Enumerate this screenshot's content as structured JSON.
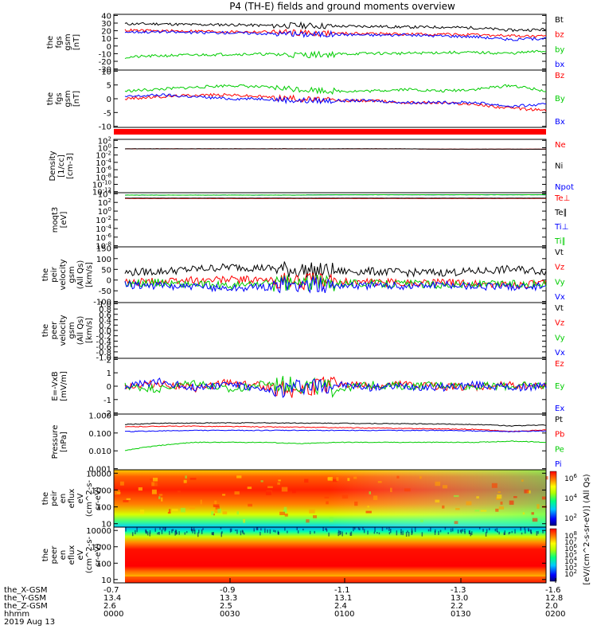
{
  "chart_data": {
    "type": "line",
    "title": "P4 (TH-E) fields and ground moments overview",
    "x_labels": {
      "rows": [
        "the_X-GSM",
        "the_Y-GSM",
        "the_Z-GSM",
        "hhmm",
        "2019 Aug 13"
      ],
      "columns": [
        [
          "-0.7",
          "13.4",
          "2.6",
          "0000"
        ],
        [
          "-0.9",
          "13.3",
          "2.5",
          "0030"
        ],
        [
          "-1.1",
          "13.1",
          "2.4",
          "0100"
        ],
        [
          "-1.3",
          "13.0",
          "2.2",
          "0130"
        ],
        [
          "-1.6",
          "12.8",
          "2.0",
          "0200"
        ]
      ]
    },
    "panels": [
      {
        "ylabel": [
          "the",
          "fgs",
          "gsm",
          "[nT]"
        ],
        "ylim": [
          -30,
          40
        ],
        "yticks": [
          "40",
          "30",
          "20",
          "10",
          "0",
          "-10",
          "-20",
          "-30"
        ],
        "series": [
          {
            "name": "Bt",
            "color": "#000000",
            "values": [
              28,
              28,
              27,
              27,
              26,
              26,
              25,
              25,
              24,
              24,
              23,
              20,
              21
            ]
          },
          {
            "name": "bz",
            "color": "#ff0000",
            "values": [
              20,
              19,
              19,
              18,
              18,
              17,
              16,
              16,
              15,
              15,
              14,
              13,
              12
            ]
          },
          {
            "name": "by",
            "color": "#00cc00",
            "values": [
              -14,
              -12,
              -11,
              -10,
              -10,
              -11,
              -10,
              -9,
              -9,
              -8,
              -8,
              -9,
              -6
            ]
          },
          {
            "name": "bx",
            "color": "#0000ff",
            "values": [
              18,
              18,
              17,
              17,
              16,
              15,
              15,
              14,
              14,
              13,
              12,
              8,
              10
            ]
          }
        ]
      },
      {
        "ylabel": [
          "the",
          "fgs",
          "gsm",
          "[nT]"
        ],
        "ylim": [
          -15,
          15
        ],
        "yticks": [
          "10",
          "5",
          "0",
          "-5",
          "-10"
        ],
        "series": [
          {
            "name": "Bz",
            "color": "#ff0000",
            "values": [
              0,
              1,
              2,
              2,
              1,
              0,
              -1,
              -1,
              -2,
              -2,
              -3,
              -5,
              -6
            ]
          },
          {
            "name": "By",
            "color": "#00cc00",
            "values": [
              4,
              5,
              6,
              7,
              6,
              5,
              4,
              4,
              5,
              4,
              5,
              7,
              4
            ]
          },
          {
            "name": "Bx",
            "color": "#0000ff",
            "values": [
              1,
              2,
              1,
              0,
              0,
              -1,
              -1,
              -1,
              -2,
              -2,
              -2,
              -4,
              -3
            ]
          }
        ]
      },
      {
        "ylabel": [
          "Density",
          "[1/cc]",
          "[cm-3]"
        ],
        "yticks": [
          "10^2",
          "10^0",
          "10^-2",
          "10^-4",
          "10^-6",
          "10^-8",
          "10^-10",
          "10^-12"
        ],
        "series": [
          {
            "name": "Ne",
            "color": "#ff0000",
            "values": [
              0.5,
              0.5,
              0.5,
              0.5,
              0.5,
              0.5,
              0.5,
              0.5,
              0.5,
              0.4,
              0.4,
              0.4,
              0.4
            ]
          },
          {
            "name": "Ni",
            "color": "#000000",
            "values": [
              0.5,
              0.5,
              0.5,
              0.5,
              0.5,
              0.5,
              0.5,
              0.5,
              0.5,
              0.4,
              0.4,
              0.4,
              0.4
            ]
          },
          {
            "name": "Npot",
            "color": "#0000ff",
            "values": []
          }
        ]
      },
      {
        "ylabel": [
          "moqt3",
          "[eV]"
        ],
        "yticks": [
          "10^4",
          "10^2",
          "10^0",
          "10^-2",
          "10^-4",
          "10^-6",
          "10^-8"
        ],
        "series": [
          {
            "name": "Te⊥",
            "color": "#ff0000",
            "values": [
              800,
              800,
              800,
              800,
              800,
              800,
              800,
              800,
              800,
              800,
              800,
              800,
              800
            ]
          },
          {
            "name": "Te∥",
            "color": "#000000",
            "values": [
              1000,
              1000,
              1000,
              1000,
              1000,
              1000,
              1000,
              1000,
              1000,
              1000,
              1000,
              1000,
              1000
            ]
          },
          {
            "name": "Ti⊥",
            "color": "#0000ff",
            "values": [
              5000,
              5000,
              5000,
              5000,
              5000,
              5000,
              6000,
              6000,
              6000,
              6000,
              6000,
              6000,
              6000
            ]
          },
          {
            "name": "Ti∥",
            "color": "#00cc00",
            "values": [
              5000,
              5000,
              5000,
              5000,
              5000,
              5000,
              6000,
              6000,
              6000,
              6000,
              6000,
              6000,
              6000
            ]
          }
        ]
      },
      {
        "ylabel": [
          "the",
          "peir",
          "velocity",
          "gsm",
          "(All Qs)",
          "[km/s]"
        ],
        "ylim": [
          -100,
          150
        ],
        "yticks": [
          "150",
          "100",
          "50",
          "0",
          "-50",
          "-100"
        ],
        "series": [
          {
            "name": "Vt",
            "color": "#000000",
            "values": [
              35,
              40,
              50,
              60,
              55,
              45,
              40,
              40,
              35,
              35,
              40,
              50,
              40
            ]
          },
          {
            "name": "Vz",
            "color": "#ff0000",
            "values": [
              -10,
              -5,
              0,
              5,
              0,
              -5,
              -5,
              -10,
              -10,
              -10,
              -15,
              -20,
              -15
            ]
          },
          {
            "name": "Vy",
            "color": "#00cc00",
            "values": [
              -15,
              -10,
              -20,
              -25,
              -15,
              -15,
              -10,
              -15,
              -15,
              -20,
              -20,
              -15,
              -20
            ]
          },
          {
            "name": "Vx",
            "color": "#0000ff",
            "values": [
              -20,
              -25,
              -30,
              -35,
              -30,
              -20,
              -20,
              -25,
              -25,
              -20,
              -25,
              -30,
              -25
            ]
          }
        ]
      },
      {
        "ylabel": [
          "the",
          "peer",
          "velocity",
          "gsm",
          "(All Qs)",
          "[km/s]"
        ],
        "ylim": [
          -1.0,
          1.0
        ],
        "yticks": [
          "1.0",
          "0.8",
          "0.6",
          "0.4",
          "0.2",
          "0.0",
          "-0.2",
          "-0.4",
          "-0.6",
          "-0.8",
          "-1.0"
        ],
        "series": [
          {
            "name": "Vt",
            "color": "#000000",
            "values": []
          },
          {
            "name": "Vz",
            "color": "#ff0000",
            "values": []
          },
          {
            "name": "Vy",
            "color": "#00cc00",
            "values": []
          },
          {
            "name": "Vx",
            "color": "#0000ff",
            "values": []
          }
        ]
      },
      {
        "ylabel": [
          "E=-VxB",
          "[mV/m]"
        ],
        "ylim": [
          -2,
          2
        ],
        "yticks": [
          "2",
          "1",
          "0",
          "-1",
          "-2"
        ],
        "series": [
          {
            "name": "Ez",
            "color": "#ff0000",
            "values": [
              0,
              0.2,
              -0.2,
              0.3,
              0,
              -0.3,
              0.2,
              0,
              0.1,
              0,
              -0.1,
              0.1,
              0
            ]
          },
          {
            "name": "Ey",
            "color": "#00cc00",
            "values": [
              0,
              -0.2,
              0.3,
              -0.3,
              0.2,
              0.1,
              -0.2,
              0.1,
              0,
              0.1,
              0,
              0,
              0.1
            ]
          },
          {
            "name": "Ex",
            "color": "#0000ff",
            "values": [
              0,
              0.3,
              -0.1,
              0.2,
              -0.4,
              0,
              0.1,
              -0.1,
              0,
              -0.1,
              0.1,
              -0.1,
              0
            ]
          }
        ]
      },
      {
        "ylabel": [
          "Pressure",
          "[nPa]"
        ],
        "yticks": [
          "1.000",
          "0.100",
          "0.010",
          "0.001"
        ],
        "series": [
          {
            "name": "Pt",
            "color": "#000000",
            "values": [
              0.3,
              0.35,
              0.36,
              0.37,
              0.37,
              0.36,
              0.35,
              0.34,
              0.33,
              0.32,
              0.3,
              0.25,
              0.28
            ]
          },
          {
            "name": "Pb",
            "color": "#ff0000",
            "values": [
              0.22,
              0.24,
              0.24,
              0.23,
              0.22,
              0.21,
              0.2,
              0.19,
              0.18,
              0.17,
              0.16,
              0.12,
              0.15
            ]
          },
          {
            "name": "Pe",
            "color": "#00cc00",
            "values": [
              0.01,
              0.02,
              0.03,
              0.03,
              0.03,
              0.025,
              0.03,
              0.03,
              0.03,
              0.03,
              0.03,
              0.035,
              0.03
            ]
          },
          {
            "name": "Pi",
            "color": "#0000ff",
            "values": [
              0.12,
              0.13,
              0.14,
              0.14,
              0.14,
              0.14,
              0.14,
              0.14,
              0.14,
              0.14,
              0.13,
              0.12,
              0.13
            ]
          }
        ]
      },
      {
        "type": "heatmap",
        "ylabel": [
          "the",
          "peir",
          "en",
          "eflux",
          "eV",
          "(cm^2-s-",
          "sr-eV)"
        ],
        "yticks": [
          "10000",
          "1000",
          "100",
          "10"
        ]
      },
      {
        "type": "heatmap",
        "ylabel": [
          "the",
          "peer",
          "en",
          "eflux",
          "eV",
          "(cm^2-s-",
          "sr-eV)"
        ],
        "yticks": [
          "10000",
          "1000",
          "100",
          "10"
        ]
      }
    ],
    "colorbars": [
      {
        "ticks": [
          "10^6",
          "10^4",
          "10^2"
        ],
        "label": "[eV/(cm^2-s-sr-eV)] (All Qs)"
      },
      {
        "ticks": [
          "10^8",
          "10^7",
          "10^6",
          "10^5",
          "10^4",
          "10^3",
          "10^2"
        ],
        "label": "[eV/(cm^2-s-sr-eV)] (All Qs)"
      }
    ]
  }
}
